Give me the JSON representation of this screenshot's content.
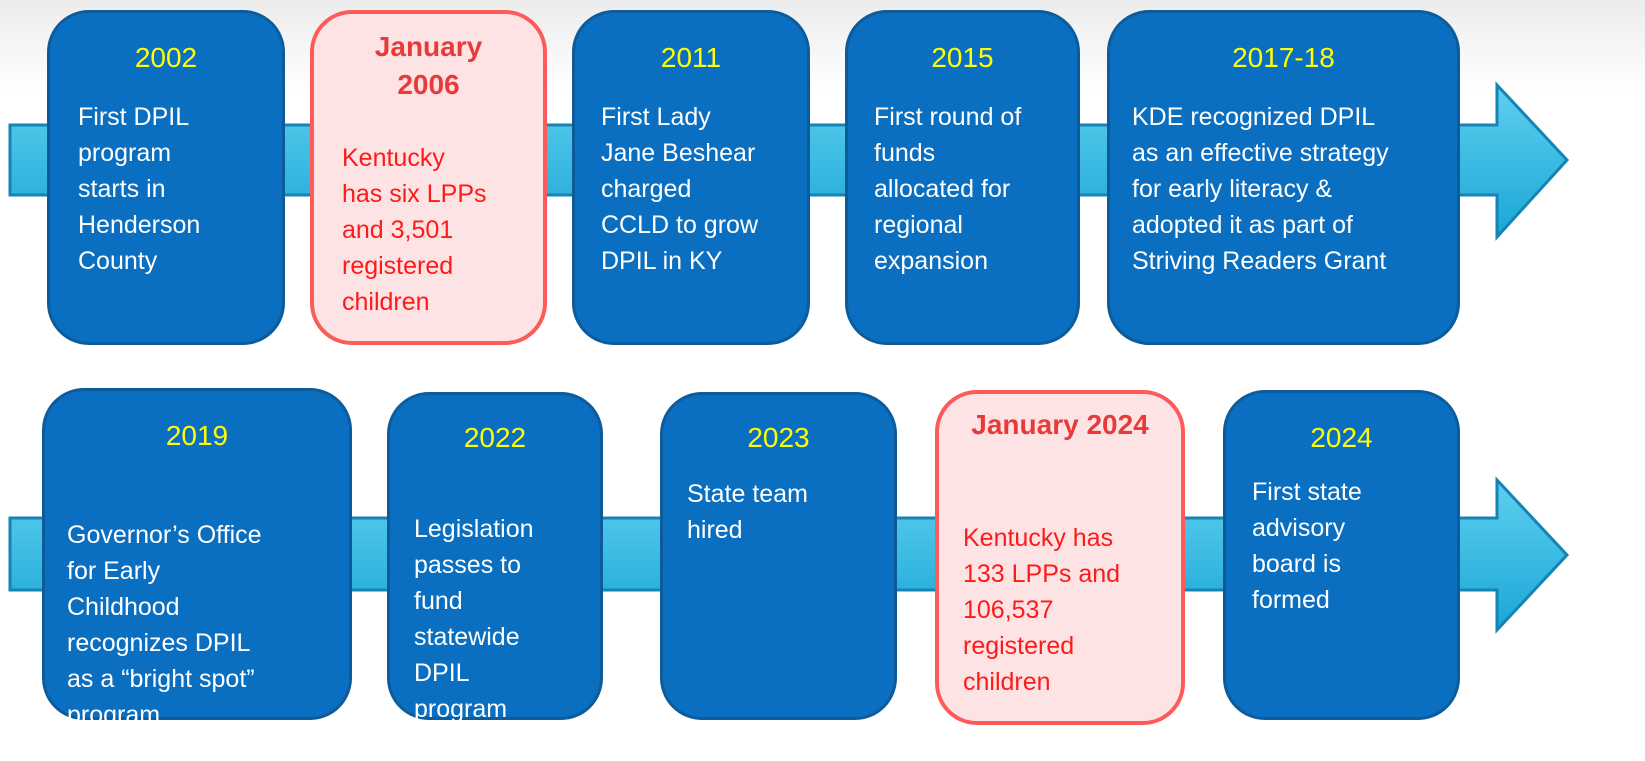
{
  "rows": [
    {
      "items": [
        {
          "title": "2002",
          "body": [
            "First DPIL",
            "program",
            "starts in",
            "Henderson",
            "County"
          ]
        },
        {
          "title": "January 2006",
          "highlight": true,
          "body": [
            "Kentucky",
            "has six LPPs",
            "and 3,501",
            "registered",
            "children"
          ]
        },
        {
          "title": "2011",
          "body": [
            "First Lady",
            "Jane Beshear",
            "charged",
            "CCLD to grow",
            "DPIL in KY"
          ]
        },
        {
          "title": "2015",
          "body": [
            "First round of",
            "funds",
            "allocated for",
            "regional",
            "expansion"
          ]
        },
        {
          "title": "2017-18",
          "body": [
            "KDE recognized DPIL",
            "as an effective strategy",
            "for early literacy &",
            "adopted it as part of",
            "Striving Readers Grant"
          ]
        }
      ]
    },
    {
      "items": [
        {
          "title": "2019",
          "body": [
            "Governor’s Office",
            "for Early",
            "Childhood",
            "recognizes DPIL",
            "as a “bright spot”",
            "program"
          ]
        },
        {
          "title": "2022",
          "body": [
            "Legislation",
            "passes to",
            "fund",
            "statewide",
            "DPIL",
            "program"
          ]
        },
        {
          "title": "2023",
          "body": [
            "State team",
            "hired"
          ]
        },
        {
          "title": "January 2024",
          "highlight": true,
          "body": [
            "Kentucky has",
            "133 LPPs and",
            "106,537",
            "registered",
            "children"
          ]
        },
        {
          "title": "2024",
          "body": [
            "First state",
            "advisory",
            "board is",
            "formed"
          ]
        }
      ]
    }
  ]
}
